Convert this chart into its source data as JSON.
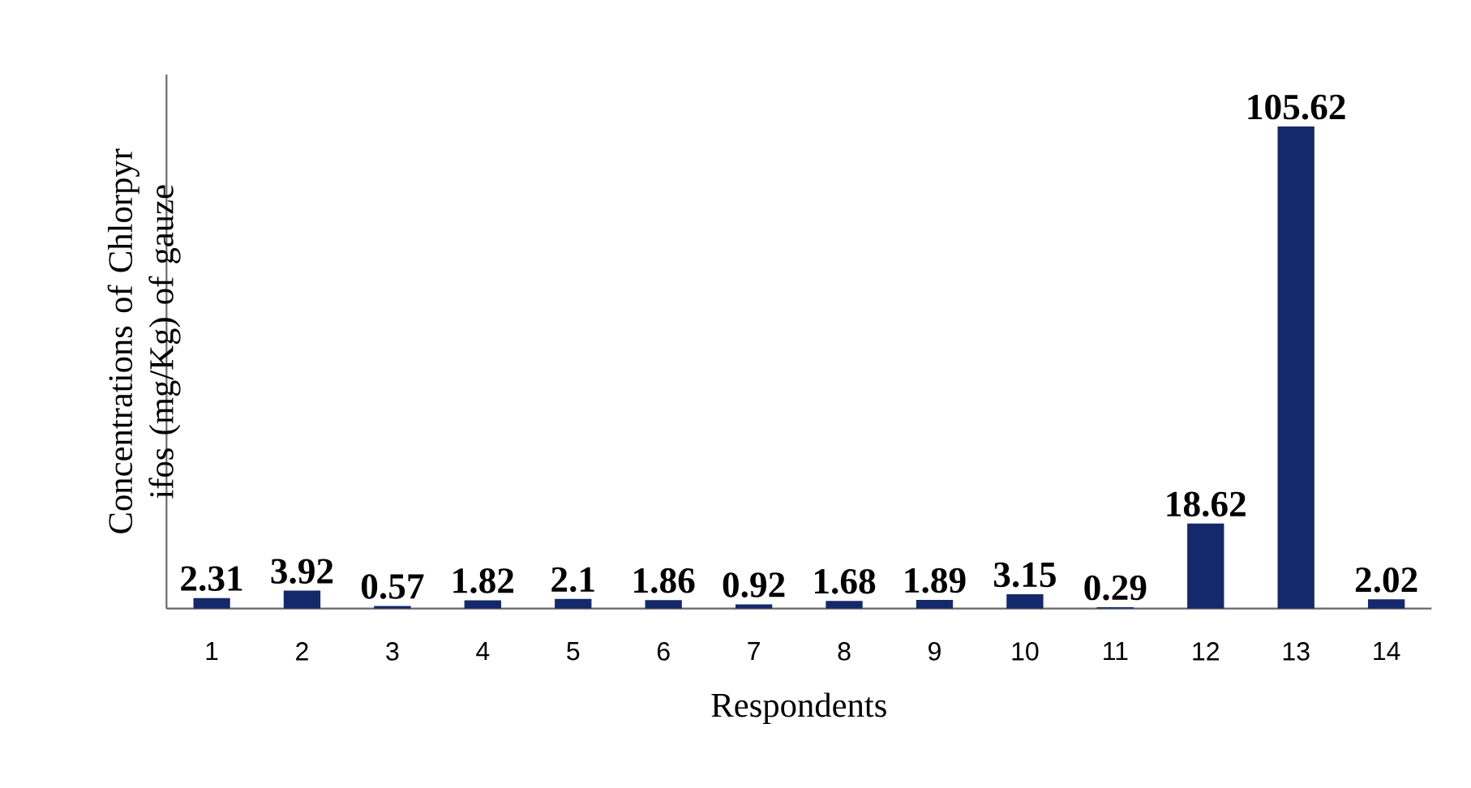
{
  "chart_data": {
    "type": "bar",
    "xlabel": "Respondents",
    "ylabel": "Concentrations of Chlorpyr ifos (mg/Kg) of gauze",
    "categories": [
      "1",
      "2",
      "3",
      "4",
      "5",
      "6",
      "7",
      "8",
      "9",
      "10",
      "11",
      "12",
      "13",
      "14"
    ],
    "values": [
      2.31,
      3.92,
      0.57,
      1.82,
      2.1,
      1.86,
      0.92,
      1.68,
      1.89,
      3.15,
      0.29,
      18.62,
      105.62,
      2.02
    ],
    "color": "#13296b",
    "ylim": [
      0,
      117
    ],
    "data_labels": true,
    "tick_labels": "x",
    "grid": false
  }
}
